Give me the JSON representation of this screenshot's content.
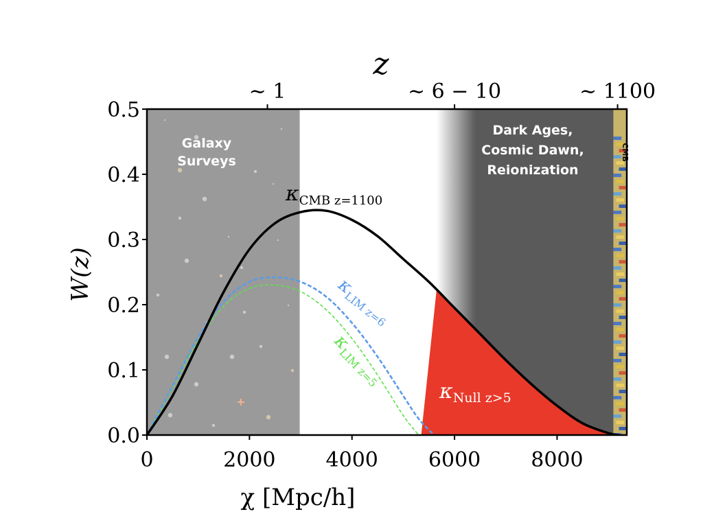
{
  "chart_data": {
    "type": "line",
    "title": "",
    "xlabel": "χ [Mpc/h]",
    "ylabel": "W(z)",
    "top_axis_label": "z",
    "xlim": [
      0,
      9360
    ],
    "ylim": [
      0,
      0.5
    ],
    "x_ticks": [
      0,
      2000,
      4000,
      6000,
      8000
    ],
    "x_tick_labels": [
      "0",
      "2000",
      "4000",
      "6000",
      "8000"
    ],
    "y_ticks": [
      0.0,
      0.1,
      0.2,
      0.3,
      0.4,
      0.5
    ],
    "y_tick_labels": [
      "0.0",
      "0.1",
      "0.2",
      "0.3",
      "0.4",
      "0.5"
    ],
    "top_ticks": [
      {
        "chi": 2350,
        "label": "∼ 1"
      },
      {
        "chi": 6000,
        "label": "∼ 6 − 10"
      },
      {
        "chi": 9180,
        "label": "∼ 1100"
      }
    ],
    "grid": false,
    "regions": [
      {
        "name": "Galaxy Surveys",
        "lines": [
          "Galaxy",
          "Surveys"
        ],
        "x_start": 0,
        "x_end": 2980,
        "color": "#9a9a9a"
      },
      {
        "name": "Dark Ages, Cosmic Dawn, Reionization",
        "lines": [
          "Dark Ages,",
          "Cosmic Dawn,",
          "Reionization"
        ],
        "x_start": 5650,
        "x_end": 9100,
        "color": "#5a5a5a"
      },
      {
        "name": "CMB",
        "lines": [
          "CMB"
        ],
        "x_start": 9100,
        "x_end": 9360,
        "color": "#c8b46a"
      }
    ],
    "series": [
      {
        "name": "kappa_CMB z=1100",
        "label_symbol": "κ",
        "label_subscript": "CMB z=1100",
        "style": "solid",
        "color": "#000000",
        "x": [
          0,
          500,
          1000,
          1500,
          2000,
          2500,
          3000,
          3500,
          4000,
          4500,
          5000,
          5500,
          6000,
          6500,
          7000,
          7500,
          8000,
          8500,
          9000,
          9200
        ],
        "y": [
          0.0,
          0.06,
          0.14,
          0.22,
          0.285,
          0.325,
          0.342,
          0.344,
          0.33,
          0.305,
          0.27,
          0.235,
          0.195,
          0.155,
          0.115,
          0.078,
          0.045,
          0.018,
          0.003,
          0.0
        ]
      },
      {
        "name": "kappa_LIM z=6",
        "label_symbol": "κ",
        "label_subscript": "LIM z=6",
        "style": "dashed",
        "color": "#5b9be6",
        "x": [
          0,
          500,
          1000,
          1500,
          2000,
          2500,
          3000,
          3500,
          4000,
          4500,
          5000,
          5300,
          5600
        ],
        "y": [
          0.0,
          0.075,
          0.15,
          0.205,
          0.235,
          0.242,
          0.235,
          0.212,
          0.172,
          0.12,
          0.06,
          0.025,
          0.0
        ]
      },
      {
        "name": "kappa_LIM z=5",
        "label_symbol": "κ",
        "label_subscript": "LIM z=5",
        "style": "dashed",
        "color": "#5ee04a",
        "x": [
          0,
          500,
          1000,
          1500,
          2000,
          2500,
          3000,
          3500,
          4000,
          4500,
          5000,
          5300
        ],
        "y": [
          0.0,
          0.072,
          0.145,
          0.198,
          0.225,
          0.23,
          0.22,
          0.192,
          0.148,
          0.092,
          0.03,
          0.0
        ]
      }
    ],
    "null_region": {
      "name": "kappa_Null z>5",
      "label_symbol": "κ",
      "label_subscript": "Null z>5",
      "color": "#e8392a",
      "x_start_bottom": 5350,
      "x_start_top": 5650
    }
  }
}
